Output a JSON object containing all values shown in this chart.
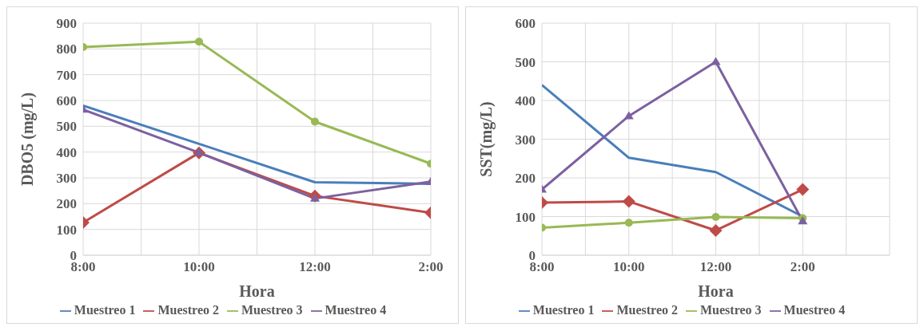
{
  "chart_data": [
    {
      "type": "line",
      "xlabel": "Hora",
      "ylabel": "DBO5 (mg/L)",
      "categories": [
        "8:00",
        "10:00",
        "12:00",
        "2:00"
      ],
      "ylim": [
        0,
        900
      ],
      "yticks": [
        0,
        100,
        200,
        300,
        400,
        500,
        600,
        700,
        800,
        900
      ],
      "grid": true,
      "legend": "bottom",
      "series": [
        {
          "name": "Muestreo 1",
          "color": "#4a7ebb",
          "marker": "none",
          "values": [
            580,
            432,
            283,
            277
          ]
        },
        {
          "name": "Muestreo 2",
          "color": "#be4b48",
          "marker": "diamond",
          "values": [
            127,
            397,
            230,
            165
          ]
        },
        {
          "name": "Muestreo 3",
          "color": "#98b954",
          "marker": "circle",
          "values": [
            807,
            828,
            518,
            355
          ]
        },
        {
          "name": "Muestreo 4",
          "color": "#7d60a0",
          "marker": "triangle",
          "values": [
            565,
            398,
            220,
            285
          ]
        }
      ]
    },
    {
      "type": "line",
      "xlabel": "Hora",
      "ylabel": "SST(mg/L)",
      "categories": [
        "8:00",
        "10:00",
        "12:00",
        "2:00",
        null
      ],
      "ylim": [
        0,
        600
      ],
      "yticks": [
        0,
        100,
        200,
        300,
        400,
        500,
        600
      ],
      "grid": true,
      "legend": "bottom",
      "series": [
        {
          "name": "Muestreo 1",
          "color": "#4a7ebb",
          "marker": "none",
          "values": [
            440,
            252,
            215,
            100,
            null
          ]
        },
        {
          "name": "Muestreo 2",
          "color": "#be4b48",
          "marker": "diamond",
          "values": [
            136,
            139,
            64,
            170,
            null
          ]
        },
        {
          "name": "Muestreo 3",
          "color": "#98b954",
          "marker": "circle",
          "values": [
            71,
            84,
            99,
            96,
            null
          ]
        },
        {
          "name": "Muestreo 4",
          "color": "#7d60a0",
          "marker": "triangle",
          "values": [
            170,
            360,
            500,
            88,
            null
          ]
        }
      ]
    }
  ]
}
